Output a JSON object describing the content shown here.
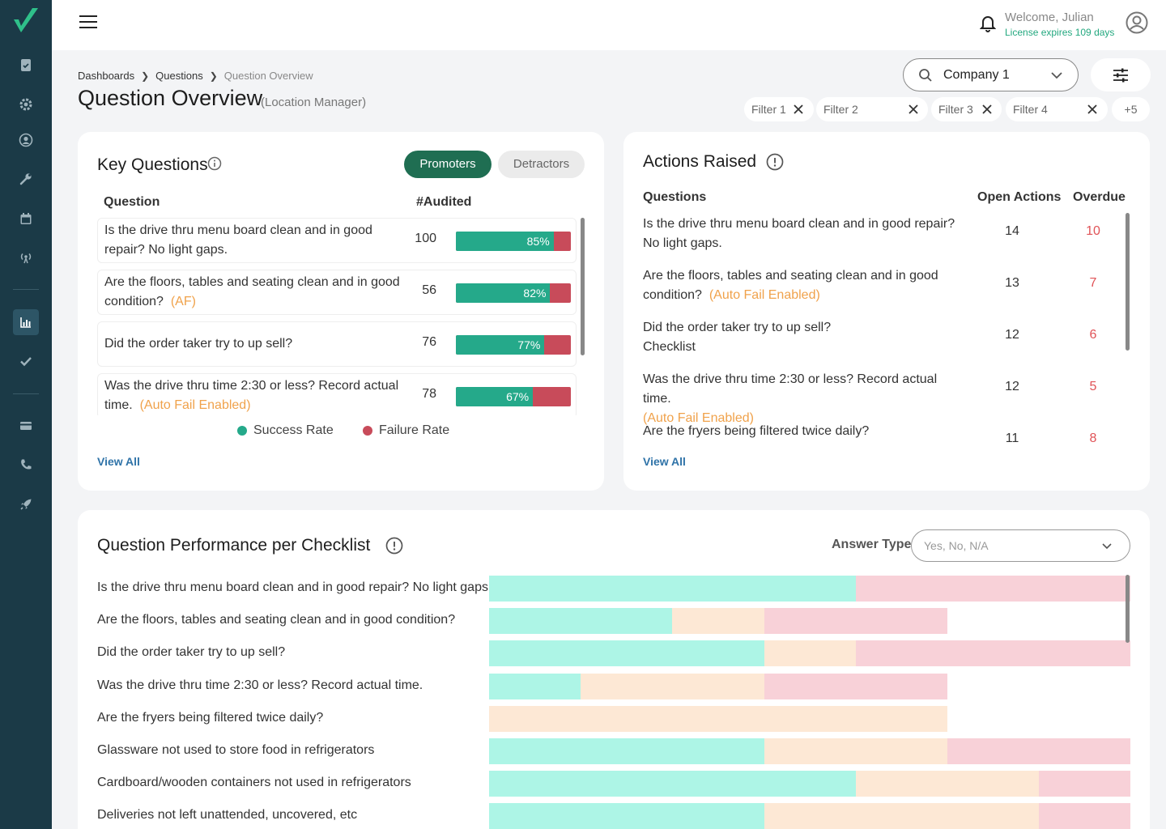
{
  "topbar": {
    "welcome": "Welcome, Julian",
    "license": "License expires 109 days"
  },
  "breadcrumb": [
    "Dashboards",
    "Questions",
    "Question Overview"
  ],
  "page": {
    "title": "Question Overview",
    "subtitle": "(Location Manager)"
  },
  "company": {
    "selected": "Company 1"
  },
  "filters": [
    "Filter 1",
    "Filter 2",
    "Filter 3",
    "Filter 4"
  ],
  "filters_more": "+5",
  "key_questions": {
    "title": "Key Questions",
    "tabs": [
      "Promoters",
      "Detractors"
    ],
    "active_tab": "Promoters",
    "col_question": "Question",
    "col_audited": "#Audited",
    "rows": [
      {
        "q": "Is the drive thru menu board clean and in good repair? No light gaps.",
        "tag": "",
        "audited": "100",
        "success": 85,
        "success_label": "85%"
      },
      {
        "q": "Are the floors, tables and seating clean and in good condition?",
        "tag": "(AF)",
        "audited": "56",
        "success": 82,
        "success_label": "82%"
      },
      {
        "q": "Did the order taker try to up sell?",
        "tag": "",
        "audited": "76",
        "success": 77,
        "success_label": "77%"
      },
      {
        "q": "Was the drive thru time 2:30 or less? Record actual time.",
        "tag": "(Auto Fail Enabled)",
        "audited": "78",
        "success": 67,
        "success_label": "67%"
      }
    ],
    "legend": {
      "success": "Success Rate",
      "failure": "Failure Rate"
    },
    "colors": {
      "success": "#25a98a",
      "failure": "#c84b5a"
    },
    "view_all": "View All"
  },
  "actions_raised": {
    "title": "Actions Raised",
    "col_questions": "Questions",
    "col_open": "Open Actions",
    "col_overdue": "Overdue",
    "rows": [
      {
        "q": "Is the drive thru menu board clean and in good repair? No light gaps.",
        "tag": "",
        "open": "14",
        "overdue": "10"
      },
      {
        "q": "Are the floors, tables and seating clean and in good condition?",
        "tag": "(Auto Fail Enabled)",
        "open": "13",
        "overdue": "7"
      },
      {
        "q": "Did the order taker try to up sell?\nChecklist",
        "tag": "",
        "open": "12",
        "overdue": "6"
      },
      {
        "q": "Was the drive thru time 2:30 or less? Record actual time.",
        "tag": "(Auto Fail Enabled)",
        "open": "12",
        "overdue": "5"
      },
      {
        "q": "Are the fryers being filtered twice daily?",
        "tag": "",
        "open": "11",
        "overdue": "8"
      }
    ],
    "view_all": "View All"
  },
  "performance": {
    "title": "Question Performance per Checklist",
    "answer_type_label": "Answer Type",
    "answer_type_placeholder": "Yes, No, N/A",
    "colors": {
      "yes": "#adf5e6",
      "na": "#fde8d5",
      "no": "#f8d1d8"
    },
    "rows": [
      {
        "label": "Is the drive thru menu board clean and in good repair? No light gaps.",
        "segments": [
          4,
          0,
          3
        ]
      },
      {
        "label": "Are the floors, tables and seating clean and in good condition?",
        "segments": [
          2,
          1,
          2
        ]
      },
      {
        "label": "Did the order taker try to up sell?",
        "segments": [
          3,
          1,
          3
        ]
      },
      {
        "label": "Was the drive thru time 2:30 or less? Record actual time.",
        "segments": [
          1,
          2,
          2
        ]
      },
      {
        "label": "Are the fryers being filtered twice daily?",
        "segments": [
          0,
          5,
          0
        ]
      },
      {
        "label": "Glassware not used to store food in refrigerators",
        "segments": [
          3,
          2,
          2
        ]
      },
      {
        "label": "Cardboard/wooden containers not used in refrigerators",
        "segments": [
          4,
          2,
          1
        ]
      },
      {
        "label": "Deliveries not left unattended, uncovered, etc",
        "segments": [
          3,
          3,
          1
        ]
      }
    ]
  }
}
